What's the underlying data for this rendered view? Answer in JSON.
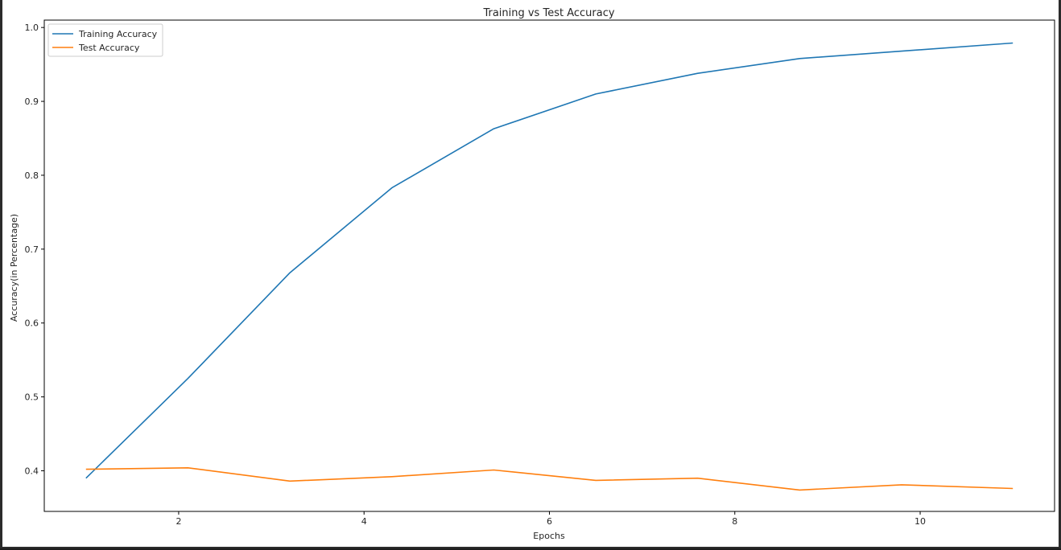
{
  "chart_data": {
    "type": "line",
    "title": "Training vs Test Accuracy",
    "xlabel": "Epochs",
    "ylabel": "Accuracy(in Percentage)",
    "xlim": [
      0.55,
      11.45
    ],
    "ylim": [
      0.345,
      1.01
    ],
    "xticks": [
      2,
      4,
      6,
      8,
      10
    ],
    "yticks": [
      0.4,
      0.5,
      0.6,
      0.7,
      0.8,
      0.9,
      1.0
    ],
    "grid": false,
    "legend_position": "top-left",
    "x": [
      1,
      2.1,
      3.2,
      4.3,
      5.4,
      6.5,
      7.6,
      8.7,
      9.8,
      11
    ],
    "series": [
      {
        "name": "Training Accuracy",
        "color": "#1f77b4",
        "values": [
          0.39,
          0.525,
          0.668,
          0.783,
          0.863,
          0.91,
          0.938,
          0.958,
          0.968,
          0.979
        ]
      },
      {
        "name": "Test Accuracy",
        "color": "#ff7f0e",
        "values": [
          0.402,
          0.404,
          0.386,
          0.392,
          0.401,
          0.387,
          0.39,
          0.374,
          0.381,
          0.376
        ]
      }
    ]
  }
}
